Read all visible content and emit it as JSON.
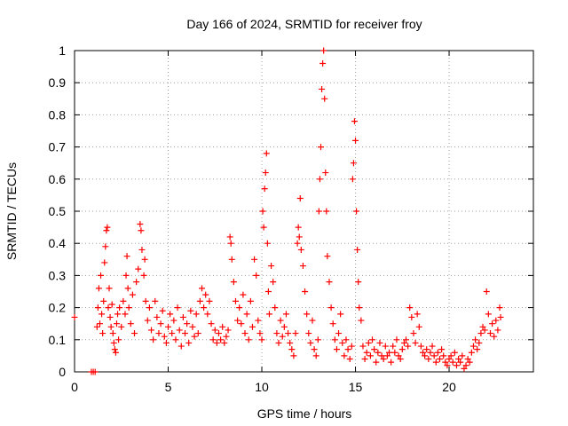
{
  "chart_data": {
    "type": "scatter",
    "title": "Day 166 of 2024, SRMTID for receiver froy",
    "xlabel": "GPS time / hours",
    "ylabel": "SRMTID / TECUs",
    "xlim": [
      0,
      24.5
    ],
    "ylim": [
      0,
      1
    ],
    "xticks": [
      0,
      5,
      10,
      15,
      20
    ],
    "xtick_labels": [
      "0",
      "5",
      "10",
      "15",
      "20"
    ],
    "yticks": [
      0,
      0.1,
      0.2,
      0.3,
      0.4,
      0.5,
      0.6,
      0.7,
      0.8,
      0.9,
      1
    ],
    "ytick_labels": [
      "0",
      "0.1",
      "0.2",
      "0.3",
      "0.4",
      "0.5",
      "0.6",
      "0.7",
      "0.8",
      "0.9",
      "1"
    ],
    "grid": true,
    "marker": "+",
    "color": "#ff0000",
    "series": [
      {
        "name": "SRMTID",
        "points": [
          [
            0.0,
            0.17
          ],
          [
            0.9,
            0.0
          ],
          [
            1.0,
            0.0
          ],
          [
            1.1,
            0.0
          ],
          [
            1.2,
            0.14
          ],
          [
            1.25,
            0.2
          ],
          [
            1.3,
            0.26
          ],
          [
            1.35,
            0.15
          ],
          [
            1.4,
            0.3
          ],
          [
            1.45,
            0.18
          ],
          [
            1.5,
            0.12
          ],
          [
            1.55,
            0.22
          ],
          [
            1.6,
            0.34
          ],
          [
            1.65,
            0.39
          ],
          [
            1.7,
            0.44
          ],
          [
            1.75,
            0.45
          ],
          [
            1.8,
            0.2
          ],
          [
            1.85,
            0.26
          ],
          [
            1.9,
            0.17
          ],
          [
            1.95,
            0.14
          ],
          [
            2.0,
            0.21
          ],
          [
            2.05,
            0.12
          ],
          [
            2.1,
            0.09
          ],
          [
            2.15,
            0.07
          ],
          [
            2.2,
            0.06
          ],
          [
            2.25,
            0.15
          ],
          [
            2.3,
            0.18
          ],
          [
            2.35,
            0.1
          ],
          [
            2.4,
            0.2
          ],
          [
            2.5,
            0.14
          ],
          [
            2.6,
            0.22
          ],
          [
            2.7,
            0.18
          ],
          [
            2.75,
            0.3
          ],
          [
            2.8,
            0.36
          ],
          [
            2.85,
            0.26
          ],
          [
            2.9,
            0.2
          ],
          [
            3.0,
            0.15
          ],
          [
            3.1,
            0.24
          ],
          [
            3.2,
            0.12
          ],
          [
            3.3,
            0.28
          ],
          [
            3.4,
            0.32
          ],
          [
            3.5,
            0.46
          ],
          [
            3.55,
            0.44
          ],
          [
            3.6,
            0.38
          ],
          [
            3.7,
            0.3
          ],
          [
            3.75,
            0.35
          ],
          [
            3.8,
            0.22
          ],
          [
            3.9,
            0.16
          ],
          [
            4.0,
            0.2
          ],
          [
            4.1,
            0.13
          ],
          [
            4.2,
            0.1
          ],
          [
            4.3,
            0.22
          ],
          [
            4.4,
            0.17
          ],
          [
            4.5,
            0.12
          ],
          [
            4.6,
            0.15
          ],
          [
            4.7,
            0.19
          ],
          [
            4.8,
            0.11
          ],
          [
            4.9,
            0.09
          ],
          [
            5.0,
            0.14
          ],
          [
            5.1,
            0.18
          ],
          [
            5.2,
            0.12
          ],
          [
            5.3,
            0.16
          ],
          [
            5.4,
            0.1
          ],
          [
            5.5,
            0.2
          ],
          [
            5.6,
            0.13
          ],
          [
            5.7,
            0.08
          ],
          [
            5.8,
            0.17
          ],
          [
            5.9,
            0.12
          ],
          [
            6.0,
            0.15
          ],
          [
            6.1,
            0.09
          ],
          [
            6.2,
            0.19
          ],
          [
            6.3,
            0.14
          ],
          [
            6.4,
            0.11
          ],
          [
            6.5,
            0.18
          ],
          [
            6.6,
            0.12
          ],
          [
            6.7,
            0.22
          ],
          [
            6.8,
            0.26
          ],
          [
            6.9,
            0.2
          ],
          [
            7.0,
            0.24
          ],
          [
            7.1,
            0.18
          ],
          [
            7.2,
            0.22
          ],
          [
            7.3,
            0.15
          ],
          [
            7.4,
            0.1
          ],
          [
            7.5,
            0.13
          ],
          [
            7.6,
            0.09
          ],
          [
            7.7,
            0.12
          ],
          [
            7.8,
            0.1
          ],
          [
            7.9,
            0.14
          ],
          [
            8.0,
            0.09
          ],
          [
            8.1,
            0.11
          ],
          [
            8.2,
            0.13
          ],
          [
            8.3,
            0.42
          ],
          [
            8.35,
            0.4
          ],
          [
            8.4,
            0.35
          ],
          [
            8.5,
            0.28
          ],
          [
            8.6,
            0.22
          ],
          [
            8.7,
            0.16
          ],
          [
            8.8,
            0.2
          ],
          [
            8.9,
            0.15
          ],
          [
            9.0,
            0.24
          ],
          [
            9.1,
            0.12
          ],
          [
            9.2,
            0.18
          ],
          [
            9.3,
            0.1
          ],
          [
            9.4,
            0.22
          ],
          [
            9.5,
            0.14
          ],
          [
            9.6,
            0.35
          ],
          [
            9.7,
            0.3
          ],
          [
            9.8,
            0.16
          ],
          [
            9.9,
            0.12
          ],
          [
            10.0,
            0.1
          ],
          [
            10.05,
            0.5
          ],
          [
            10.1,
            0.45
          ],
          [
            10.15,
            0.57
          ],
          [
            10.2,
            0.62
          ],
          [
            10.25,
            0.68
          ],
          [
            10.3,
            0.4
          ],
          [
            10.35,
            0.25
          ],
          [
            10.4,
            0.18
          ],
          [
            10.5,
            0.33
          ],
          [
            10.6,
            0.28
          ],
          [
            10.7,
            0.2
          ],
          [
            10.8,
            0.12
          ],
          [
            10.9,
            0.09
          ],
          [
            11.0,
            0.16
          ],
          [
            11.1,
            0.11
          ],
          [
            11.2,
            0.14
          ],
          [
            11.3,
            0.18
          ],
          [
            11.4,
            0.12
          ],
          [
            11.5,
            0.09
          ],
          [
            11.6,
            0.07
          ],
          [
            11.7,
            0.05
          ],
          [
            11.8,
            0.12
          ],
          [
            11.9,
            0.4
          ],
          [
            11.95,
            0.45
          ],
          [
            12.0,
            0.42
          ],
          [
            12.05,
            0.54
          ],
          [
            12.1,
            0.38
          ],
          [
            12.2,
            0.33
          ],
          [
            12.3,
            0.25
          ],
          [
            12.4,
            0.18
          ],
          [
            12.5,
            0.12
          ],
          [
            12.6,
            0.09
          ],
          [
            12.7,
            0.16
          ],
          [
            12.8,
            0.07
          ],
          [
            12.9,
            0.05
          ],
          [
            13.0,
            0.1
          ],
          [
            13.05,
            0.5
          ],
          [
            13.1,
            0.6
          ],
          [
            13.15,
            0.7
          ],
          [
            13.2,
            0.88
          ],
          [
            13.25,
            0.96
          ],
          [
            13.3,
            1.0
          ],
          [
            13.35,
            0.85
          ],
          [
            13.4,
            0.62
          ],
          [
            13.45,
            0.5
          ],
          [
            13.5,
            0.36
          ],
          [
            13.6,
            0.28
          ],
          [
            13.7,
            0.2
          ],
          [
            13.8,
            0.15
          ],
          [
            13.9,
            0.1
          ],
          [
            14.0,
            0.07
          ],
          [
            14.1,
            0.12
          ],
          [
            14.2,
            0.18
          ],
          [
            14.3,
            0.09
          ],
          [
            14.4,
            0.05
          ],
          [
            14.5,
            0.1
          ],
          [
            14.6,
            0.07
          ],
          [
            14.7,
            0.04
          ],
          [
            14.8,
            0.08
          ],
          [
            14.85,
            0.6
          ],
          [
            14.9,
            0.65
          ],
          [
            14.95,
            0.78
          ],
          [
            15.0,
            0.72
          ],
          [
            15.05,
            0.5
          ],
          [
            15.1,
            0.38
          ],
          [
            15.15,
            0.28
          ],
          [
            15.2,
            0.2
          ],
          [
            15.3,
            0.16
          ],
          [
            15.4,
            0.08
          ],
          [
            15.5,
            0.04
          ],
          [
            15.6,
            0.06
          ],
          [
            15.7,
            0.09
          ],
          [
            15.8,
            0.05
          ],
          [
            15.9,
            0.1
          ],
          [
            16.0,
            0.07
          ],
          [
            16.1,
            0.03
          ],
          [
            16.2,
            0.06
          ],
          [
            16.3,
            0.09
          ],
          [
            16.4,
            0.05
          ],
          [
            16.5,
            0.04
          ],
          [
            16.6,
            0.08
          ],
          [
            16.7,
            0.05
          ],
          [
            16.8,
            0.06
          ],
          [
            16.9,
            0.03
          ],
          [
            17.0,
            0.08
          ],
          [
            17.1,
            0.06
          ],
          [
            17.2,
            0.1
          ],
          [
            17.3,
            0.05
          ],
          [
            17.4,
            0.04
          ],
          [
            17.5,
            0.07
          ],
          [
            17.6,
            0.09
          ],
          [
            17.7,
            0.1
          ],
          [
            17.8,
            0.08
          ],
          [
            17.9,
            0.2
          ],
          [
            18.0,
            0.17
          ],
          [
            18.1,
            0.12
          ],
          [
            18.2,
            0.09
          ],
          [
            18.3,
            0.18
          ],
          [
            18.4,
            0.14
          ],
          [
            18.5,
            0.08
          ],
          [
            18.6,
            0.06
          ],
          [
            18.7,
            0.05
          ],
          [
            18.8,
            0.07
          ],
          [
            18.9,
            0.04
          ],
          [
            19.0,
            0.06
          ],
          [
            19.1,
            0.08
          ],
          [
            19.2,
            0.05
          ],
          [
            19.3,
            0.03
          ],
          [
            19.4,
            0.06
          ],
          [
            19.5,
            0.04
          ],
          [
            19.6,
            0.07
          ],
          [
            19.7,
            0.05
          ],
          [
            19.8,
            0.03
          ],
          [
            19.9,
            0.02
          ],
          [
            20.0,
            0.04
          ],
          [
            20.1,
            0.05
          ],
          [
            20.2,
            0.03
          ],
          [
            20.3,
            0.06
          ],
          [
            20.4,
            0.02
          ],
          [
            20.5,
            0.04
          ],
          [
            20.6,
            0.03
          ],
          [
            20.7,
            0.05
          ],
          [
            20.8,
            0.01
          ],
          [
            20.9,
            0.02
          ],
          [
            21.0,
            0.04
          ],
          [
            21.1,
            0.03
          ],
          [
            21.2,
            0.06
          ],
          [
            21.3,
            0.08
          ],
          [
            21.4,
            0.1
          ],
          [
            21.5,
            0.07
          ],
          [
            21.6,
            0.09
          ],
          [
            21.7,
            0.12
          ],
          [
            21.8,
            0.14
          ],
          [
            21.9,
            0.13
          ],
          [
            22.0,
            0.25
          ],
          [
            22.1,
            0.18
          ],
          [
            22.2,
            0.12
          ],
          [
            22.3,
            0.15
          ],
          [
            22.4,
            0.11
          ],
          [
            22.5,
            0.16
          ],
          [
            22.6,
            0.13
          ],
          [
            22.7,
            0.2
          ],
          [
            22.75,
            0.17
          ]
        ]
      }
    ]
  }
}
